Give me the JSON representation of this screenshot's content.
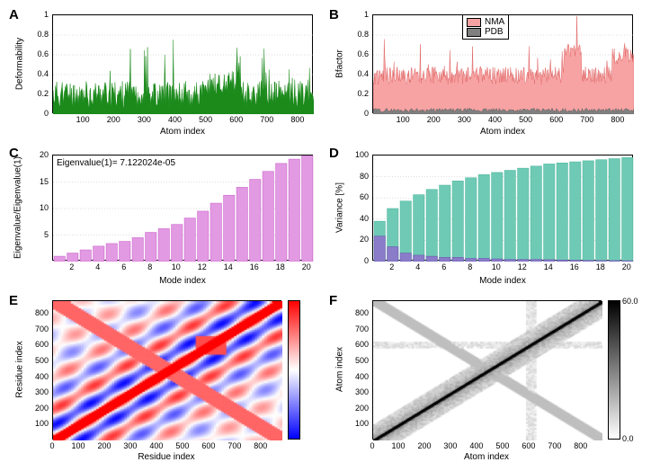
{
  "panels": {
    "A": {
      "label": "A",
      "type": "area",
      "ylabel": "Deformability",
      "xlabel": "Atom index",
      "color": "#1b8a1b",
      "bg": "#ffffff",
      "grid_color": "#bbbbbb",
      "xlim": [
        0,
        850
      ],
      "xticks": [
        100,
        200,
        300,
        400,
        500,
        600,
        700,
        800
      ],
      "ylim": [
        0,
        1
      ],
      "yticks": [
        0,
        0.2,
        0.4,
        0.6,
        0.8,
        1
      ],
      "n": 850,
      "seed": 11
    },
    "B": {
      "label": "B",
      "type": "area_double",
      "ylabel": "Bfactor",
      "xlabel": "Atom index",
      "series": [
        {
          "name": "NMA",
          "color": "#f7a3a3",
          "border": "#e06666"
        },
        {
          "name": "PDB",
          "color": "#808080",
          "border": "#606060"
        }
      ],
      "bg": "#ffffff",
      "grid_color": "#bbbbbb",
      "xlim": [
        0,
        850
      ],
      "xticks": [
        100,
        200,
        300,
        400,
        500,
        600,
        700,
        800
      ],
      "ylim": [
        0,
        1
      ],
      "yticks": [
        0,
        0.2,
        0.4,
        0.6,
        0.8,
        1
      ],
      "n": 850,
      "seed": 22
    },
    "C": {
      "label": "C",
      "type": "bar",
      "ylabel": "Eigenvalue/Eigenvalue(1)",
      "xlabel": "Mode index",
      "annotation": "Eigenvalue(1)= 7.122024e-05",
      "color": "#e29ae2",
      "border": "#cc66cc",
      "bg": "#ffffff",
      "grid_color": "#bbbbbb",
      "xlim": [
        0.5,
        20.5
      ],
      "xticks": [
        2,
        4,
        6,
        8,
        10,
        12,
        14,
        16,
        18,
        20
      ],
      "ylim": [
        0,
        20
      ],
      "yticks": [
        5,
        10,
        15,
        20
      ],
      "bar_width": 0.85,
      "values": [
        1,
        1.6,
        2.2,
        2.9,
        3.4,
        3.8,
        4.5,
        5.5,
        6.2,
        7.0,
        8.2,
        9.5,
        11.0,
        12.5,
        14.0,
        15.5,
        17.0,
        18.5,
        19.3,
        20.0
      ]
    },
    "D": {
      "label": "D",
      "type": "bar_double",
      "ylabel": "Variance [%]",
      "xlabel": "Mode index",
      "series": [
        {
          "color": "#6fcab5",
          "border": "#4fb8a0",
          "values": [
            38,
            50,
            57,
            63,
            68,
            72,
            76,
            79,
            82,
            84,
            86,
            88,
            90,
            92,
            93,
            94,
            95,
            96,
            97,
            98
          ]
        },
        {
          "color": "#8a7cc9",
          "border": "#6a5cb0",
          "values": [
            24,
            14,
            8,
            6,
            5,
            4,
            4,
            3,
            3,
            2.5,
            2,
            2,
            2,
            1.8,
            1.5,
            1.3,
            1.1,
            1,
            0.9,
            0.8
          ]
        }
      ],
      "bg": "#ffffff",
      "grid_color": "#bbbbbb",
      "xlim": [
        0.5,
        20.5
      ],
      "xticks": [
        2,
        4,
        6,
        8,
        10,
        12,
        14,
        16,
        18,
        20
      ],
      "ylim": [
        0,
        100
      ],
      "yticks": [
        0,
        20,
        40,
        60,
        80,
        100
      ],
      "bar_width": 0.85
    },
    "E": {
      "label": "E",
      "type": "heatmap_corr",
      "ylabel": "Residue index",
      "xlabel": "Residue index",
      "xlim": [
        0,
        880
      ],
      "xticks": [
        0,
        100,
        200,
        300,
        400,
        500,
        600,
        700,
        800
      ],
      "ylim": [
        0,
        880
      ],
      "yticks": [
        100,
        200,
        300,
        400,
        500,
        600,
        700,
        800
      ],
      "colorbar": {
        "top": "#ff0000",
        "mid": "#ffffff",
        "bot": "#0000ff"
      }
    },
    "F": {
      "label": "F",
      "type": "heatmap_gray",
      "ylabel": "Atom index",
      "xlabel": "Atom index",
      "xlim": [
        0,
        880
      ],
      "xticks": [
        0,
        100,
        200,
        300,
        400,
        500,
        600,
        700,
        800
      ],
      "ylim": [
        0,
        880
      ],
      "yticks": [
        100,
        200,
        300,
        400,
        500,
        600,
        700,
        800
      ],
      "colorbar": {
        "top": "#000000",
        "bot": "#ffffff",
        "max": "60.0",
        "min": "0.0"
      }
    }
  },
  "fonts": {
    "label": 15,
    "axis": 10,
    "tick": 9
  },
  "colors": {
    "bg": "#ffffff",
    "border": "#000000"
  }
}
